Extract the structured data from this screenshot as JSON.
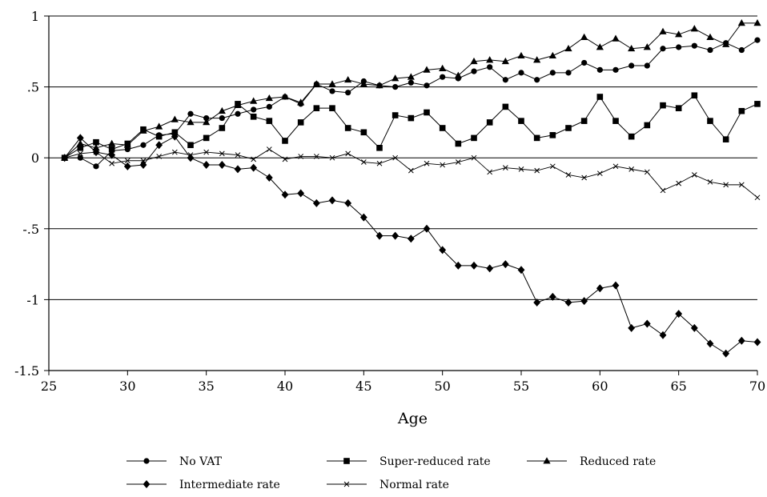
{
  "chart_data": {
    "type": "line",
    "title": "",
    "xlabel": "Age",
    "ylabel": "",
    "xlim": [
      25,
      70
    ],
    "ylim": [
      -1.5,
      1
    ],
    "x_ticks": [
      25,
      30,
      35,
      40,
      45,
      50,
      55,
      60,
      65,
      70
    ],
    "x_tick_labels": [
      "25",
      "30",
      "35",
      "40",
      "45",
      "50",
      "55",
      "60",
      "65",
      "70"
    ],
    "y_ticks": [
      1,
      0.5,
      0,
      -0.5,
      -1,
      -1.5
    ],
    "y_tick_labels": [
      "1",
      ".5",
      "0",
      "-.5",
      "-1",
      "-1.5"
    ],
    "grid": "horizontal",
    "legend_position": "bottom",
    "x": [
      26,
      27,
      28,
      29,
      30,
      31,
      32,
      33,
      34,
      35,
      36,
      37,
      38,
      39,
      40,
      41,
      42,
      43,
      44,
      45,
      46,
      47,
      48,
      49,
      50,
      51,
      52,
      53,
      54,
      55,
      56,
      57,
      58,
      59,
      60,
      61,
      62,
      63,
      64,
      65,
      66,
      67,
      68,
      69,
      70
    ],
    "series": [
      {
        "name": "No VAT",
        "marker": "circle",
        "values": [
          0,
          0.0,
          -0.06,
          0.05,
          0.06,
          0.09,
          0.16,
          0.17,
          0.31,
          0.28,
          0.28,
          0.31,
          0.34,
          0.36,
          0.43,
          0.38,
          0.52,
          0.47,
          0.46,
          0.54,
          0.51,
          0.5,
          0.53,
          0.51,
          0.57,
          0.56,
          0.61,
          0.64,
          0.55,
          0.6,
          0.55,
          0.6,
          0.6,
          0.67,
          0.62,
          0.62,
          0.65,
          0.65,
          0.77,
          0.78,
          0.79,
          0.76,
          0.81,
          0.76,
          0.83
        ]
      },
      {
        "name": "Super-reduced rate",
        "marker": "square",
        "values": [
          0,
          0.07,
          0.11,
          0.06,
          0.1,
          0.2,
          0.15,
          0.18,
          0.09,
          0.14,
          0.21,
          0.38,
          0.29,
          0.26,
          0.12,
          0.25,
          0.35,
          0.35,
          0.21,
          0.18,
          0.07,
          0.3,
          0.28,
          0.32,
          0.21,
          0.1,
          0.14,
          0.25,
          0.36,
          0.26,
          0.14,
          0.16,
          0.21,
          0.26,
          0.43,
          0.26,
          0.15,
          0.23,
          0.37,
          0.35,
          0.44,
          0.26,
          0.13,
          0.33,
          0.38
        ]
      },
      {
        "name": "Reduced rate",
        "marker": "triangle",
        "values": [
          0,
          0.1,
          0.07,
          0.1,
          0.09,
          0.19,
          0.22,
          0.27,
          0.25,
          0.25,
          0.33,
          0.37,
          0.4,
          0.42,
          0.43,
          0.39,
          0.52,
          0.52,
          0.55,
          0.52,
          0.51,
          0.56,
          0.57,
          0.62,
          0.63,
          0.58,
          0.68,
          0.69,
          0.68,
          0.72,
          0.69,
          0.72,
          0.77,
          0.85,
          0.78,
          0.84,
          0.77,
          0.78,
          0.89,
          0.87,
          0.91,
          0.85,
          0.8,
          0.95,
          0.95
        ]
      },
      {
        "name": "Intermediate rate",
        "marker": "diamond",
        "values": [
          0,
          0.14,
          0.04,
          0.02,
          -0.06,
          -0.05,
          0.09,
          0.15,
          0.0,
          -0.05,
          -0.05,
          -0.08,
          -0.07,
          -0.14,
          -0.26,
          -0.25,
          -0.32,
          -0.3,
          -0.32,
          -0.42,
          -0.55,
          -0.55,
          -0.57,
          -0.5,
          -0.65,
          -0.76,
          -0.76,
          -0.78,
          -0.75,
          -0.79,
          -1.02,
          -0.98,
          -1.02,
          -1.01,
          -0.92,
          -0.9,
          -1.2,
          -1.17,
          -1.25,
          -1.1,
          -1.2,
          -1.31,
          -1.38,
          -1.29,
          -1.3
        ]
      },
      {
        "name": "Normal rate",
        "marker": "x",
        "values": [
          0,
          0.03,
          0.04,
          -0.04,
          -0.02,
          -0.02,
          0.01,
          0.04,
          0.02,
          0.04,
          0.03,
          0.02,
          -0.01,
          0.06,
          -0.01,
          0.01,
          0.01,
          0.0,
          0.03,
          -0.03,
          -0.04,
          0.0,
          -0.09,
          -0.04,
          -0.05,
          -0.03,
          0.0,
          -0.1,
          -0.07,
          -0.08,
          -0.09,
          -0.06,
          -0.12,
          -0.14,
          -0.11,
          -0.06,
          -0.08,
          -0.1,
          -0.23,
          -0.18,
          -0.12,
          -0.17,
          -0.19,
          -0.19,
          -0.28
        ]
      }
    ],
    "legend_rows": [
      [
        "No VAT",
        "Super-reduced rate",
        "Reduced rate"
      ],
      [
        "Intermediate rate",
        "Normal rate"
      ]
    ]
  }
}
